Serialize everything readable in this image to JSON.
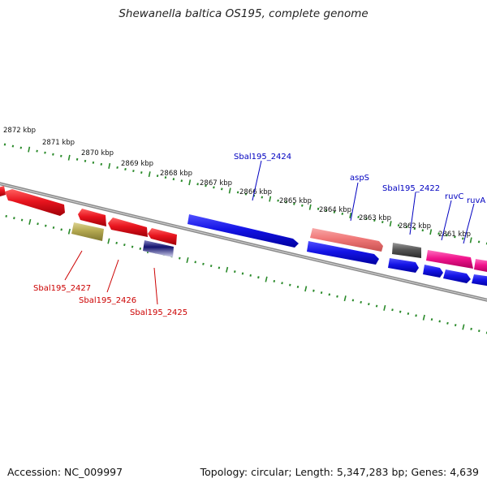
{
  "title": "Shewanella baltica OS195, complete genome",
  "footer": {
    "accession": "Accession: NC_009997",
    "topology": "Topology: circular; Length: 5,347,283 bp; Genes: 4,639"
  },
  "scale_labels": [
    "2872 kbp",
    "2871 kbp",
    "2870 kbp",
    "2869 kbp",
    "2868 kbp",
    "2867 kbp",
    "2866 kbp",
    "2865 kbp",
    "2864 kbp",
    "2863 kbp",
    "2862 kbp",
    "2861 kbp"
  ],
  "gene_labels_top": [
    "Sbal195_2424",
    "aspS",
    "Sbal195_2422",
    "ruvC",
    "ruvA"
  ],
  "gene_labels_bottom": [
    "Sbal195_2427",
    "Sbal195_2426",
    "Sbal195_2425"
  ],
  "colors": {
    "red": "#e8141e",
    "blue": "#1414e6",
    "pink": "#f07878",
    "magenta": "#f0148c",
    "gray": "#555555",
    "olive": "#b4a850",
    "navy": "#14146e",
    "tick": "#2a8a2a",
    "label_blue": "#0000c0",
    "label_red": "#cc0000"
  }
}
